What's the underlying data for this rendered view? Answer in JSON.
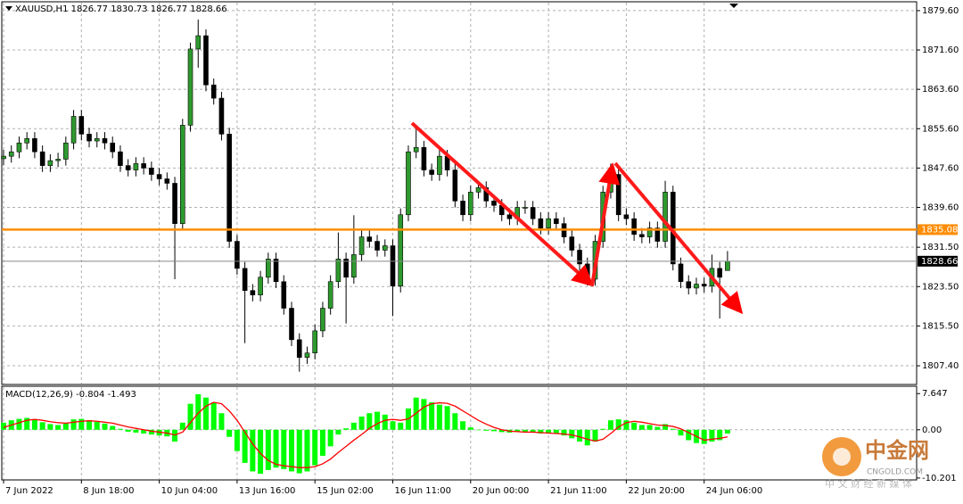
{
  "chart_data": [
    {
      "type": "candlestick",
      "series": [
        {
          "name": "XAUUSD,H1",
          "open": [
            1849.5,
            1850.0,
            1850.9,
            1852.7,
            1853.6,
            1850.9,
            1848.1,
            1849.1,
            1849.4,
            1852.7,
            1858.1,
            1854.5,
            1853.1,
            1853.6,
            1852.7,
            1850.9,
            1848.1,
            1847.2,
            1848.5,
            1847.6,
            1846.3,
            1845.4,
            1844.5,
            1836.3,
            1856.3,
            1871.8,
            1874.5,
            1864.5,
            1861.8,
            1854.5,
            1832.7,
            1827.2,
            1822.7,
            1821.8,
            1825.4,
            1829.1,
            1824.5,
            1819.1,
            1812.7,
            1809.1,
            1810.0,
            1814.5,
            1819.1,
            1824.5,
            1829.1,
            1825.4,
            1830.0,
            1833.6,
            1832.7,
            1830.9,
            1831.8,
            1823.6,
            1838.1,
            1850.9,
            1851.8,
            1847.2,
            1846.3,
            1850.0,
            1847.2,
            1840.9,
            1838.1,
            1842.7,
            1843.6,
            1840.9,
            1840.0,
            1838.1,
            1837.3,
            1839.6,
            1839.6,
            1837.3,
            1835.4,
            1837.3,
            1836.3,
            1833.6,
            1830.9,
            1828.1,
            1825.0,
            1832.7,
            1842.7,
            1846.3,
            1838.1,
            1837.3,
            1834.1,
            1833.6,
            1835.4,
            1832.7,
            1842.7,
            1828.1,
            1824.5,
            1823.2,
            1824.0,
            1823.6,
            1827.2,
            1826.77
          ],
          "high": [
            1851.3,
            1852.2,
            1854.0,
            1854.9,
            1854.9,
            1852.2,
            1850.4,
            1850.7,
            1854.0,
            1859.4,
            1859.4,
            1855.8,
            1854.9,
            1854.9,
            1854.0,
            1852.2,
            1849.4,
            1849.8,
            1849.8,
            1848.9,
            1847.6,
            1846.7,
            1845.8,
            1857.6,
            1873.1,
            1877.8,
            1875.8,
            1865.8,
            1863.1,
            1855.8,
            1834.0,
            1828.5,
            1824.0,
            1826.7,
            1830.4,
            1830.4,
            1825.8,
            1820.4,
            1814.0,
            1811.3,
            1815.8,
            1820.4,
            1825.8,
            1834.5,
            1830.4,
            1838.0,
            1834.9,
            1834.9,
            1834.0,
            1833.1,
            1833.1,
            1839.4,
            1852.2,
            1856.0,
            1853.1,
            1848.5,
            1851.3,
            1851.3,
            1848.5,
            1842.2,
            1844.0,
            1844.9,
            1844.9,
            1842.2,
            1841.3,
            1839.4,
            1840.9,
            1841.0,
            1840.9,
            1838.6,
            1838.6,
            1838.6,
            1837.6,
            1834.9,
            1832.2,
            1829.4,
            1834.0,
            1844.0,
            1848.5,
            1847.6,
            1839.4,
            1838.6,
            1835.4,
            1836.7,
            1836.7,
            1845.0,
            1844.0,
            1829.4,
            1825.8,
            1825.3,
            1825.3,
            1830.0,
            1828.5,
            1830.73
          ],
          "low": [
            1848.2,
            1848.7,
            1849.6,
            1851.4,
            1849.6,
            1846.8,
            1846.8,
            1847.8,
            1848.1,
            1851.4,
            1853.2,
            1851.8,
            1851.8,
            1851.4,
            1849.6,
            1846.8,
            1845.9,
            1845.9,
            1846.3,
            1845.0,
            1844.1,
            1843.2,
            1825.0,
            1835.0,
            1855.0,
            1868.0,
            1863.2,
            1860.5,
            1853.2,
            1831.4,
            1825.9,
            1812.0,
            1820.5,
            1820.5,
            1824.1,
            1823.2,
            1817.8,
            1811.4,
            1806.2,
            1807.8,
            1808.7,
            1813.2,
            1817.8,
            1823.2,
            1816.0,
            1824.1,
            1828.7,
            1831.4,
            1829.6,
            1829.6,
            1817.5,
            1822.3,
            1836.8,
            1849.6,
            1845.9,
            1845.0,
            1845.0,
            1845.9,
            1839.6,
            1836.8,
            1836.8,
            1841.4,
            1839.6,
            1838.7,
            1836.8,
            1836.0,
            1836.0,
            1838.3,
            1836.0,
            1834.1,
            1834.1,
            1835.0,
            1832.3,
            1829.6,
            1826.8,
            1823.7,
            1823.7,
            1831.4,
            1841.4,
            1836.8,
            1836.0,
            1832.8,
            1832.3,
            1832.3,
            1831.4,
            1831.4,
            1826.8,
            1823.2,
            1821.9,
            1821.9,
            1822.3,
            1822.3,
            1817.0,
            1826.77
          ],
          "close": [
            1850.0,
            1850.9,
            1852.7,
            1853.6,
            1850.9,
            1848.1,
            1849.1,
            1849.4,
            1852.7,
            1858.1,
            1854.5,
            1853.1,
            1853.6,
            1852.7,
            1850.9,
            1848.1,
            1847.2,
            1848.5,
            1847.6,
            1846.3,
            1845.4,
            1844.5,
            1836.3,
            1856.3,
            1871.8,
            1874.5,
            1864.5,
            1861.8,
            1854.5,
            1832.7,
            1827.2,
            1822.7,
            1821.8,
            1825.4,
            1829.1,
            1824.5,
            1819.1,
            1812.7,
            1809.1,
            1810.0,
            1814.5,
            1819.1,
            1824.5,
            1829.1,
            1825.4,
            1830.0,
            1833.6,
            1832.7,
            1830.9,
            1831.8,
            1823.6,
            1838.1,
            1850.9,
            1851.8,
            1847.2,
            1846.3,
            1850.0,
            1847.2,
            1840.9,
            1838.1,
            1842.7,
            1843.6,
            1840.9,
            1840.0,
            1838.1,
            1837.3,
            1839.6,
            1839.6,
            1837.3,
            1835.4,
            1837.3,
            1836.3,
            1833.6,
            1830.9,
            1828.1,
            1825.0,
            1832.7,
            1842.7,
            1846.3,
            1838.1,
            1837.3,
            1834.1,
            1833.6,
            1835.4,
            1832.7,
            1842.7,
            1828.1,
            1824.5,
            1823.2,
            1824.0,
            1823.6,
            1827.2,
            1825.4,
            1828.66
          ],
          "up_color": "#2e9a2e",
          "down_color": "#000000"
        }
      ],
      "categories": [
        "7 Jun 2022",
        null,
        null,
        null,
        null,
        null,
        null,
        null,
        null,
        null,
        "8 Jun 18:00",
        null,
        null,
        null,
        null,
        null,
        null,
        null,
        null,
        null,
        "10 Jun 04:00",
        null,
        null,
        null,
        null,
        null,
        null,
        null,
        null,
        null,
        "13 Jun 16:00",
        null,
        null,
        null,
        null,
        null,
        null,
        null,
        null,
        null,
        "15 Jun 02:00",
        null,
        null,
        null,
        null,
        null,
        null,
        null,
        null,
        null,
        "16 Jun 11:00",
        null,
        null,
        null,
        null,
        null,
        null,
        null,
        null,
        null,
        "20 Jun 00:00",
        null,
        null,
        null,
        null,
        null,
        null,
        null,
        null,
        null,
        "21 Jun 11:00",
        null,
        null,
        null,
        null,
        null,
        null,
        null,
        null,
        null,
        "22 Jun 20:00",
        null,
        null,
        null,
        null,
        null,
        null,
        null,
        null,
        null,
        "24 Jun 06:00",
        null,
        null,
        null
      ],
      "ylim": [
        1803.6,
        1881.4
      ],
      "yticks": [
        {
          "value": 1879.6,
          "label": "1879.60"
        },
        {
          "value": 1871.6,
          "label": "1871.60"
        },
        {
          "value": 1863.6,
          "label": "1863.60"
        },
        {
          "value": 1855.6,
          "label": "1855.60"
        },
        {
          "value": 1847.6,
          "label": "1847.60"
        },
        {
          "value": 1839.6,
          "label": "1839.60"
        },
        {
          "value": 1831.5,
          "label": "1831.50"
        },
        {
          "value": 1823.5,
          "label": "1823.50"
        },
        {
          "value": 1815.5,
          "label": "1815.50"
        },
        {
          "value": 1807.4,
          "label": "1807.40"
        }
      ],
      "levels": [
        {
          "value": 1835.08,
          "color": "#ff8c00"
        }
      ],
      "grid": true
    },
    {
      "type": "macd",
      "title": "MACD(12,26,9)",
      "series": [
        {
          "color": "#00ff00",
          "values": [
            1.5,
            2.0,
            2.3,
            2.5,
            2.2,
            1.6,
            1.2,
            1.0,
            1.4,
            2.2,
            2.3,
            2.0,
            1.7,
            1.3,
            0.8,
            0.2,
            -0.4,
            -0.6,
            -0.8,
            -1.0,
            -1.2,
            -1.4,
            -2.5,
            1.5,
            5.5,
            7.5,
            6.8,
            5.8,
            3.5,
            -1.5,
            -4.5,
            -7.0,
            -8.8,
            -9.3,
            -8.5,
            -8.0,
            -8.3,
            -8.8,
            -9.2,
            -8.8,
            -7.5,
            -5.5,
            -3.5,
            -1.0,
            0.3,
            1.5,
            2.8,
            3.5,
            3.8,
            3.2,
            1.8,
            1.5,
            4.5,
            6.8,
            6.5,
            5.8,
            5.3,
            5.0,
            3.5,
            1.8,
            0.5,
            0.0,
            -0.2,
            -0.3,
            -0.5,
            -0.6,
            -0.5,
            -0.4,
            -0.6,
            -0.8,
            -0.8,
            -0.8,
            -1.2,
            -1.8,
            -2.5,
            -3.3,
            -2.5,
            0.2,
            2.0,
            2.2,
            2.0,
            1.5,
            1.0,
            1.0,
            0.6,
            1.2,
            0.2,
            -1.2,
            -2.2,
            -2.8,
            -3.0,
            -2.5,
            -2.2,
            -0.804
          ]
        },
        {
          "color": "#ff0000",
          "values": [
            0.5,
            1.0,
            1.5,
            2.0,
            2.2,
            2.0,
            1.7,
            1.5,
            1.4,
            1.6,
            1.8,
            1.9,
            1.8,
            1.6,
            1.4,
            1.0,
            0.6,
            0.3,
            0.0,
            -0.3,
            -0.5,
            -0.7,
            -1.1,
            -0.5,
            1.5,
            3.5,
            5.0,
            5.8,
            5.5,
            4.0,
            2.0,
            -0.5,
            -3.0,
            -5.0,
            -6.5,
            -7.3,
            -7.6,
            -7.8,
            -8.0,
            -8.0,
            -7.8,
            -7.2,
            -6.2,
            -4.8,
            -3.5,
            -2.2,
            -1.0,
            0.3,
            1.3,
            2.0,
            2.2,
            2.0,
            2.3,
            3.5,
            4.8,
            5.5,
            5.7,
            5.6,
            5.0,
            4.0,
            3.0,
            2.0,
            1.2,
            0.5,
            0.0,
            -0.3,
            -0.4,
            -0.5,
            -0.5,
            -0.6,
            -0.7,
            -0.8,
            -0.9,
            -1.1,
            -1.5,
            -2.0,
            -2.4,
            -2.0,
            -0.8,
            0.6,
            1.5,
            1.8,
            1.6,
            1.3,
            1.0,
            0.9,
            0.7,
            0.2,
            -0.6,
            -1.4,
            -2.2,
            -2.0,
            -1.8,
            -1.493
          ]
        }
      ],
      "ylim": [
        -10.6,
        9.2
      ],
      "yticks": [
        7.647,
        {
          "value": 0,
          "label": "0.00"
        },
        -10.201
      ]
    }
  ],
  "watermark": {
    "brand": "中金网",
    "domain": "CNGOLD.COM",
    "slogan": "中 文 财 经 新 媒 体"
  }
}
